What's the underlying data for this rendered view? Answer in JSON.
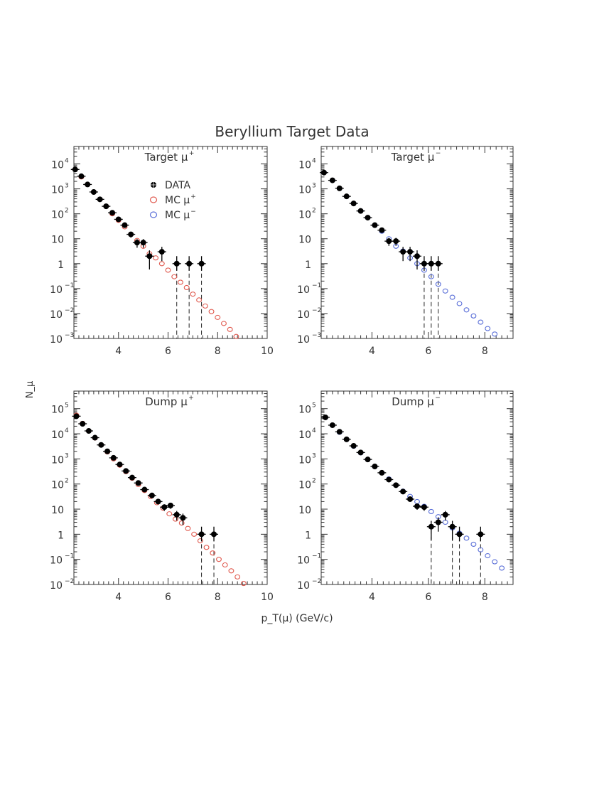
{
  "figure": {
    "title": "Beryllium Target Data",
    "shared_xlabel": "p_T(μ) (GeV/c)",
    "shared_ylabel": "N_μ"
  },
  "colors": {
    "data": "#000000",
    "mc_plus": "#e05a4f",
    "mc_minus": "#5a6fd8",
    "axis": "#333333"
  },
  "legend": {
    "location_panel": "Target μ+",
    "placement": "top-center",
    "entries": [
      {
        "label": "DATA",
        "marker": "filled-circle-with-error",
        "color": "#000000"
      },
      {
        "label": "MC μ+",
        "marker": "open-circle",
        "color": "#e05a4f"
      },
      {
        "label": "MC μ−",
        "marker": "open-circle",
        "color": "#5a6fd8"
      }
    ]
  },
  "chart_data": [
    {
      "type": "scatter",
      "label_main": "Target μ",
      "label_sign": "+",
      "xlim": [
        2.2,
        10
      ],
      "ylim_log": [
        -3,
        4.7
      ],
      "xticks": [
        4,
        6,
        8,
        10
      ],
      "yticks": [
        {
          "exp": 4,
          "label": "10",
          "sup": "4"
        },
        {
          "exp": 3,
          "label": "10",
          "sup": "3"
        },
        {
          "exp": 2,
          "label": "10",
          "sup": "2"
        },
        {
          "exp": 1,
          "label": "10",
          "sup": ""
        },
        {
          "exp": 0,
          "label": "1",
          "sup": ""
        },
        {
          "exp": -1,
          "label": "10",
          "sup": "−1"
        },
        {
          "exp": -2,
          "label": "10",
          "sup": "−2"
        },
        {
          "exp": -3,
          "label": "10",
          "sup": "−3"
        }
      ],
      "series": [
        {
          "name": "DATA",
          "kind": "data",
          "x": [
            2.25,
            2.5,
            2.75,
            3.0,
            3.25,
            3.5,
            3.75,
            4.0,
            4.25,
            4.5,
            4.75,
            5.0,
            5.25,
            5.75,
            6.35,
            6.85,
            7.35
          ],
          "y": [
            6000,
            3200,
            1500,
            750,
            380,
            200,
            110,
            60,
            35,
            15,
            7,
            7,
            2,
            3,
            1,
            1,
            1
          ]
        },
        {
          "name": "MC μ+",
          "kind": "mc_plus",
          "x": [
            2.25,
            2.5,
            2.75,
            3.0,
            3.25,
            3.5,
            3.75,
            4.0,
            4.25,
            4.5,
            4.75,
            5.0,
            5.25,
            5.5,
            5.75,
            6.0,
            6.25,
            6.5,
            6.75,
            7.0,
            7.25,
            7.5,
            7.75,
            8.0,
            8.25,
            8.5,
            8.75
          ],
          "y": [
            6000,
            3000,
            1500,
            750,
            380,
            200,
            100,
            55,
            30,
            15,
            8.5,
            5,
            2.5,
            1.7,
            1,
            0.55,
            0.3,
            0.18,
            0.11,
            0.06,
            0.035,
            0.02,
            0.012,
            0.007,
            0.004,
            0.0023,
            0.0012
          ]
        }
      ],
      "dashed_x": [
        6.35,
        6.85,
        7.35
      ]
    },
    {
      "type": "scatter",
      "label_main": "Target μ",
      "label_sign": "−",
      "xlim": [
        2.2,
        9
      ],
      "ylim_log": [
        -3,
        4.7
      ],
      "xticks": [
        4,
        6,
        8
      ],
      "yticks": [
        {
          "exp": 4,
          "label": "10",
          "sup": "4"
        },
        {
          "exp": 3,
          "label": "10",
          "sup": "3"
        },
        {
          "exp": 2,
          "label": "10",
          "sup": "2"
        },
        {
          "exp": 1,
          "label": "10",
          "sup": ""
        },
        {
          "exp": 0,
          "label": "1",
          "sup": ""
        },
        {
          "exp": -1,
          "label": "10",
          "sup": "−1"
        },
        {
          "exp": -2,
          "label": "10",
          "sup": "−2"
        },
        {
          "exp": -3,
          "label": "10",
          "sup": "−3"
        }
      ],
      "series": [
        {
          "name": "DATA",
          "kind": "data",
          "x": [
            2.3,
            2.6,
            2.85,
            3.1,
            3.35,
            3.6,
            3.85,
            4.1,
            4.35,
            4.6,
            4.85,
            5.1,
            5.35,
            5.6,
            5.85,
            6.1,
            6.35
          ],
          "y": [
            4500,
            2200,
            1050,
            500,
            260,
            130,
            70,
            35,
            22,
            8,
            8,
            3,
            3,
            2,
            1,
            1,
            1
          ]
        },
        {
          "name": "MC μ−",
          "kind": "mc_minus",
          "x": [
            2.3,
            2.6,
            2.85,
            3.1,
            3.35,
            3.6,
            3.85,
            4.1,
            4.35,
            4.6,
            4.85,
            5.1,
            5.35,
            5.6,
            5.85,
            6.1,
            6.35,
            6.6,
            6.85,
            7.1,
            7.35,
            7.6,
            7.85,
            8.1,
            8.35
          ],
          "y": [
            4500,
            2200,
            1050,
            500,
            260,
            130,
            70,
            35,
            20,
            10,
            5,
            3.2,
            1.7,
            1,
            0.55,
            0.3,
            0.15,
            0.08,
            0.045,
            0.025,
            0.014,
            0.008,
            0.0045,
            0.0025,
            0.0015
          ]
        }
      ],
      "dashed_x": [
        5.85,
        6.1,
        6.35
      ]
    },
    {
      "type": "scatter",
      "label_main": "Dump μ",
      "label_sign": "+",
      "xlim": [
        2.2,
        10
      ],
      "ylim_log": [
        -2,
        5.7
      ],
      "xticks": [
        4,
        6,
        8,
        10
      ],
      "yticks": [
        {
          "exp": 5,
          "label": "10",
          "sup": "5"
        },
        {
          "exp": 4,
          "label": "10",
          "sup": "4"
        },
        {
          "exp": 3,
          "label": "10",
          "sup": "3"
        },
        {
          "exp": 2,
          "label": "10",
          "sup": "2"
        },
        {
          "exp": 1,
          "label": "10",
          "sup": ""
        },
        {
          "exp": 0,
          "label": "1",
          "sup": ""
        },
        {
          "exp": -1,
          "label": "10",
          "sup": "−1"
        },
        {
          "exp": -2,
          "label": "10",
          "sup": "−2"
        }
      ],
      "series": [
        {
          "name": "DATA",
          "kind": "data",
          "x": [
            2.3,
            2.55,
            2.8,
            3.05,
            3.3,
            3.55,
            3.8,
            4.05,
            4.3,
            4.55,
            4.8,
            5.05,
            5.35,
            5.6,
            5.85,
            6.1,
            6.35,
            6.6,
            7.35,
            7.85
          ],
          "y": [
            50000,
            25000,
            13000,
            7000,
            3600,
            2000,
            1100,
            600,
            330,
            180,
            110,
            60,
            35,
            20,
            12,
            14,
            6,
            4.5,
            1,
            1
          ]
        },
        {
          "name": "MC μ+",
          "kind": "mc_plus",
          "x": [
            2.3,
            2.55,
            2.8,
            3.05,
            3.3,
            3.55,
            3.8,
            4.05,
            4.3,
            4.55,
            4.8,
            5.05,
            5.3,
            5.55,
            5.8,
            6.05,
            6.3,
            6.55,
            6.8,
            7.05,
            7.3,
            7.55,
            7.8,
            8.05,
            8.3,
            8.55,
            8.8,
            9.05
          ],
          "y": [
            55000,
            26000,
            13000,
            6800,
            3600,
            1900,
            1000,
            560,
            310,
            170,
            95,
            55,
            32,
            18,
            11,
            6.5,
            4,
            2.8,
            1.7,
            1,
            0.55,
            0.3,
            0.18,
            0.1,
            0.06,
            0.035,
            0.02,
            0.011
          ]
        }
      ],
      "dashed_x": [
        7.35,
        7.85
      ]
    },
    {
      "type": "scatter",
      "label_main": "Dump μ",
      "label_sign": "−",
      "xlim": [
        2.2,
        9
      ],
      "ylim_log": [
        -2,
        5.7
      ],
      "xticks": [
        4,
        6,
        8
      ],
      "yticks": [
        {
          "exp": 5,
          "label": "10",
          "sup": "5"
        },
        {
          "exp": 4,
          "label": "10",
          "sup": "4"
        },
        {
          "exp": 3,
          "label": "10",
          "sup": "3"
        },
        {
          "exp": 2,
          "label": "10",
          "sup": "2"
        },
        {
          "exp": 1,
          "label": "10",
          "sup": ""
        },
        {
          "exp": 0,
          "label": "1",
          "sup": ""
        },
        {
          "exp": -1,
          "label": "10",
          "sup": "−1"
        },
        {
          "exp": -2,
          "label": "10",
          "sup": "−2"
        }
      ],
      "series": [
        {
          "name": "DATA",
          "kind": "data",
          "x": [
            2.35,
            2.6,
            2.85,
            3.1,
            3.35,
            3.6,
            3.85,
            4.1,
            4.35,
            4.6,
            4.85,
            5.1,
            5.35,
            5.6,
            5.85,
            6.1,
            6.35,
            6.6,
            6.85,
            7.1,
            7.85
          ],
          "y": [
            45000,
            22000,
            12000,
            6000,
            3300,
            1800,
            950,
            500,
            280,
            150,
            90,
            50,
            25,
            13,
            12,
            2,
            3,
            6,
            2,
            1,
            1
          ]
        },
        {
          "name": "MC μ−",
          "kind": "mc_minus",
          "x": [
            2.35,
            2.6,
            2.85,
            3.1,
            3.35,
            3.6,
            3.85,
            4.1,
            4.35,
            4.6,
            4.85,
            5.1,
            5.35,
            5.6,
            5.85,
            6.1,
            6.35,
            6.6,
            6.85,
            7.1,
            7.35,
            7.6,
            7.85,
            8.1,
            8.35,
            8.6
          ],
          "y": [
            45000,
            22000,
            11500,
            6000,
            3200,
            1750,
            950,
            500,
            280,
            160,
            90,
            52,
            32,
            20,
            13,
            8,
            5,
            3,
            1.8,
            1.1,
            0.7,
            0.4,
            0.24,
            0.14,
            0.08,
            0.045
          ]
        }
      ],
      "dashed_x": [
        6.1,
        6.85,
        7.1,
        7.85
      ]
    }
  ]
}
